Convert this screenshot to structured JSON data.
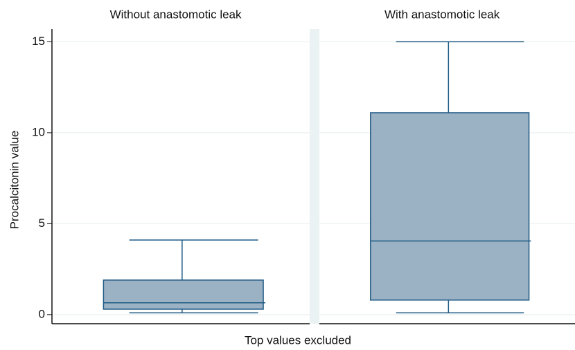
{
  "chart_data": {
    "type": "box",
    "categories": [
      "Without anastomotic leak",
      "With anastomotic leak"
    ],
    "ylabel": "Procalcitonin value",
    "xlabel": "Top values excluded",
    "series": [
      {
        "name": "Procalcitonin value",
        "color": "#9bb1c4",
        "whisker_low": [
          0.1,
          0.1
        ],
        "q1": [
          0.3,
          0.8
        ],
        "median": [
          0.65,
          4.05
        ],
        "q3": [
          1.9,
          11.1
        ],
        "whisker_high": [
          4.1,
          15
        ]
      }
    ],
    "ylim": [
      -0.5,
      15.7
    ],
    "yticks": [
      0,
      5,
      10,
      15
    ],
    "grid": true
  }
}
